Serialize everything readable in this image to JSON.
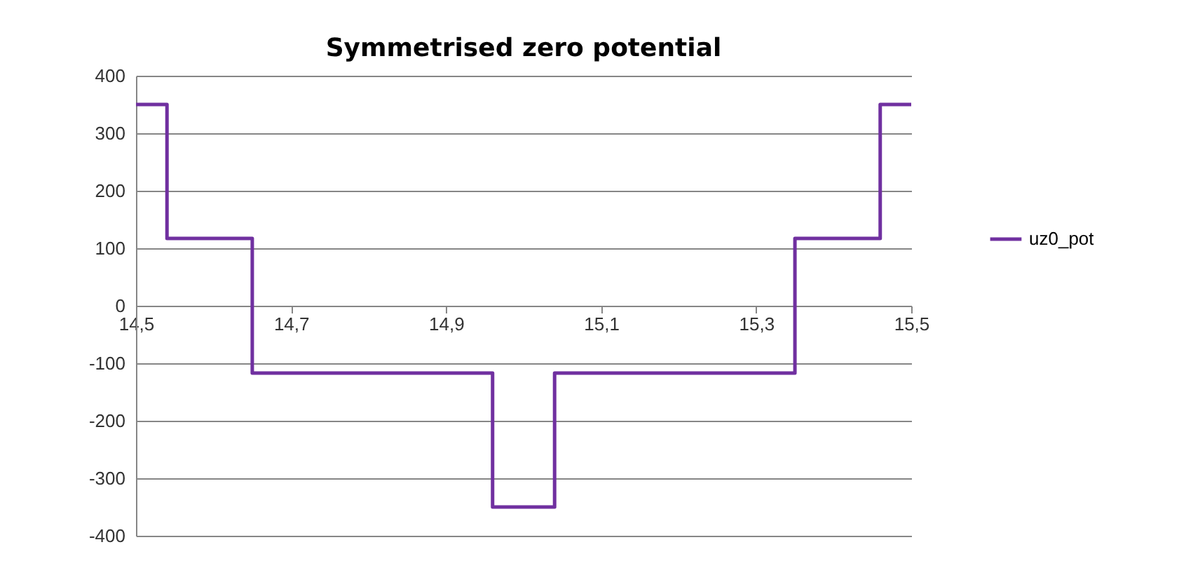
{
  "chart_data": {
    "type": "step",
    "title": "Symmetrised zero potential",
    "x": [
      14.5,
      14.54,
      14.65,
      14.96,
      15.04,
      15.35,
      15.46,
      15.5
    ],
    "series": [
      {
        "name": "uz0_pot",
        "color": "#7030a0",
        "values": [
          350,
          117,
          -117,
          -350,
          -117,
          117,
          350,
          350
        ]
      }
    ],
    "xlim": [
      14.5,
      15.5
    ],
    "xticks": [
      {
        "value": 14.5,
        "label": "14,5"
      },
      {
        "value": 14.7,
        "label": "14,7"
      },
      {
        "value": 14.9,
        "label": "14,9"
      },
      {
        "value": 15.1,
        "label": "15,1"
      },
      {
        "value": 15.3,
        "label": "15,3"
      },
      {
        "value": 15.5,
        "label": "15,5"
      }
    ],
    "ylim": [
      -400,
      400
    ],
    "yticks": [
      -400,
      -300,
      -200,
      -100,
      0,
      100,
      200,
      300,
      400
    ],
    "grid": "y",
    "legend": "right"
  }
}
